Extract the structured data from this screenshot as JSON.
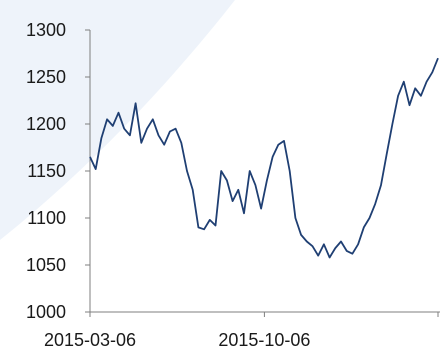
{
  "chart_data": {
    "type": "line",
    "title": "",
    "xlabel": "",
    "ylabel": "",
    "ylim": [
      1000,
      1300
    ],
    "y_ticks": [
      1000,
      1050,
      1100,
      1150,
      1200,
      1250,
      1300
    ],
    "y_tick_labels": [
      "1000",
      "1050",
      "1100",
      "1150",
      "1200",
      "1250",
      "1300"
    ],
    "x_ticks": [
      "2015-03-06",
      "2015-10-06"
    ],
    "x_range": [
      "2015-03-06",
      "2016-05-06"
    ],
    "grid": false,
    "legend": "none",
    "colors": {
      "line": "#1f3f73",
      "axis": "#7f7f7f",
      "background_tint": "#eef3fa"
    },
    "series": [
      {
        "x": [
          "2015-03-06",
          "2015-03-13",
          "2015-03-20",
          "2015-03-27",
          "2015-04-03",
          "2015-04-10",
          "2015-04-17",
          "2015-04-24",
          "2015-05-01",
          "2015-05-08",
          "2015-05-15",
          "2015-05-22",
          "2015-05-29",
          "2015-06-05",
          "2015-06-12",
          "2015-06-19",
          "2015-06-26",
          "2015-07-03",
          "2015-07-10",
          "2015-07-17",
          "2015-07-24",
          "2015-07-31",
          "2015-08-07",
          "2015-08-14",
          "2015-08-21",
          "2015-08-28",
          "2015-09-04",
          "2015-09-11",
          "2015-09-18",
          "2015-09-25",
          "2015-10-02",
          "2015-10-09",
          "2015-10-16",
          "2015-10-23",
          "2015-10-30",
          "2015-11-06",
          "2015-11-13",
          "2015-11-20",
          "2015-11-27",
          "2015-12-04",
          "2015-12-11",
          "2015-12-18",
          "2015-12-25",
          "2016-01-01",
          "2016-01-08",
          "2016-01-15",
          "2016-01-22",
          "2016-01-29",
          "2016-02-05",
          "2016-02-12",
          "2016-02-19",
          "2016-02-26",
          "2016-03-04",
          "2016-03-11",
          "2016-03-18",
          "2016-03-25",
          "2016-04-01",
          "2016-04-08",
          "2016-04-15",
          "2016-04-22",
          "2016-04-29",
          "2016-05-06"
        ],
        "values": [
          1165,
          1152,
          1185,
          1205,
          1198,
          1212,
          1195,
          1188,
          1222,
          1180,
          1195,
          1205,
          1188,
          1178,
          1192,
          1195,
          1180,
          1150,
          1130,
          1090,
          1088,
          1098,
          1092,
          1150,
          1140,
          1118,
          1130,
          1105,
          1150,
          1135,
          1110,
          1140,
          1165,
          1178,
          1182,
          1150,
          1100,
          1082,
          1075,
          1070,
          1060,
          1072,
          1058,
          1068,
          1075,
          1065,
          1062,
          1072,
          1090,
          1100,
          1115,
          1135,
          1168,
          1200,
          1230,
          1245,
          1220,
          1238,
          1230,
          1245,
          1255,
          1270
        ]
      }
    ]
  }
}
